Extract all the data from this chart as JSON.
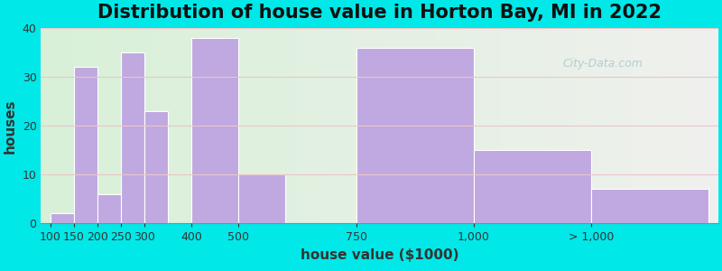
{
  "title": "Distribution of house value in Horton Bay, MI in 2022",
  "xlabel": "house value ($1000)",
  "ylabel": "houses",
  "bar_labels": [
    "100",
    "150",
    "200",
    "250",
    "300",
    "400",
    "500",
    "750",
    "1,000",
    "> 1,000"
  ],
  "bar_values": [
    2,
    32,
    6,
    35,
    23,
    38,
    10,
    36,
    15,
    7
  ],
  "bar_widths": [
    50,
    50,
    50,
    50,
    50,
    100,
    100,
    250,
    250,
    250
  ],
  "bar_left_edges": [
    100,
    150,
    200,
    250,
    300,
    400,
    500,
    750,
    1000,
    1250
  ],
  "bar_color": "#c0a8e0",
  "bar_edgecolor": "#ffffff",
  "ylim": [
    0,
    40
  ],
  "yticks": [
    0,
    10,
    20,
    30,
    40
  ],
  "outer_bg": "#00e8e8",
  "title_fontsize": 15,
  "axis_label_fontsize": 11,
  "tick_fontsize": 9,
  "watermark_text": "City-Data.com",
  "xtick_positions": [
    100,
    150,
    200,
    250,
    300,
    400,
    500,
    750,
    1000,
    1250
  ],
  "xtick_labels": [
    "100",
    "150",
    "200",
    "250",
    "300",
    "400",
    "500",
    "750",
    "1,000",
    "> 1,000"
  ],
  "xlim": [
    80,
    1520
  ]
}
